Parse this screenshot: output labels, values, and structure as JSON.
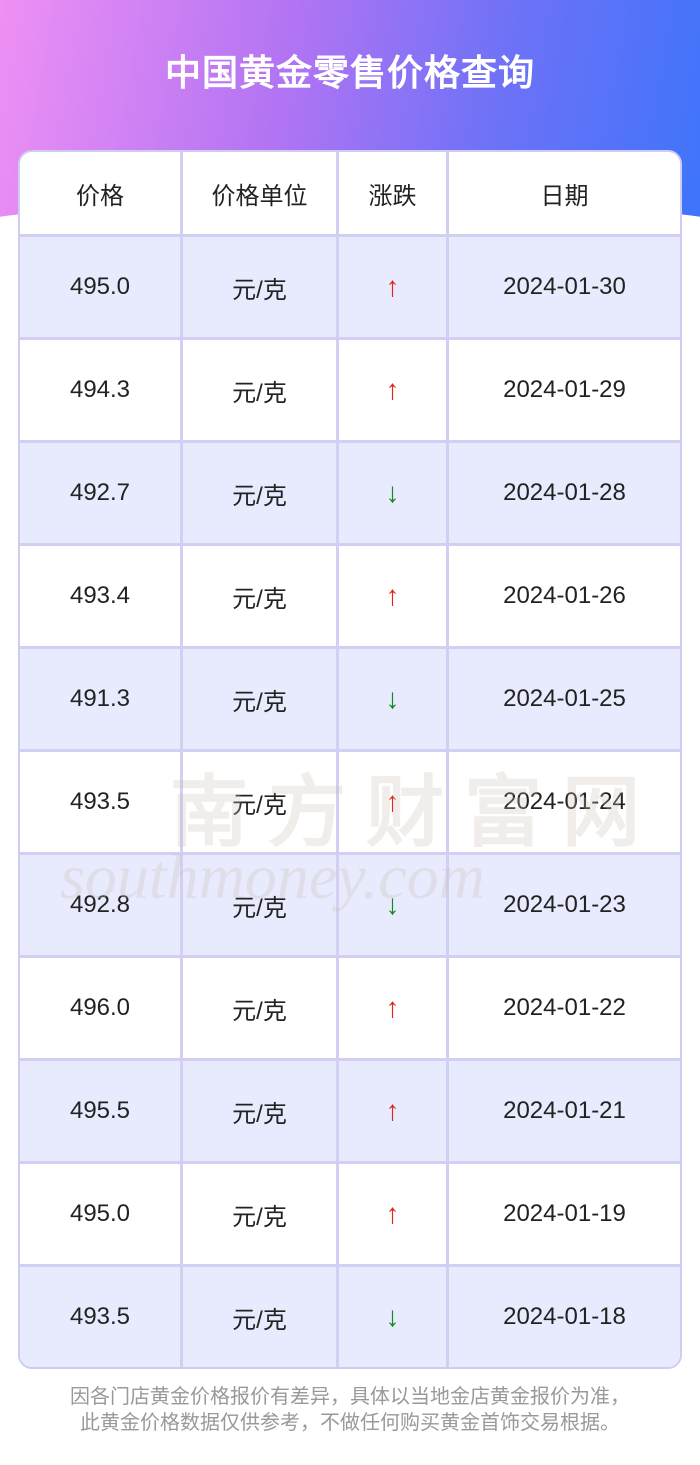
{
  "header": {
    "title": "中国黄金零售价格查询"
  },
  "table": {
    "columns": [
      "价格",
      "价格单位",
      "涨跌",
      "日期"
    ],
    "rows": [
      [
        "495.0",
        "元/克",
        "↑",
        "2024-01-30"
      ],
      [
        "494.3",
        "元/克",
        "↑",
        "2024-01-29"
      ],
      [
        "492.7",
        "元/克",
        "↓",
        "2024-01-28"
      ],
      [
        "493.4",
        "元/克",
        "↑",
        "2024-01-26"
      ],
      [
        "491.3",
        "元/克",
        "↓",
        "2024-01-25"
      ],
      [
        "493.5",
        "元/克",
        "↑",
        "2024-01-24"
      ],
      [
        "492.8",
        "元/克",
        "↓",
        "2024-01-23"
      ],
      [
        "496.0",
        "元/克",
        "↑",
        "2024-01-22"
      ],
      [
        "495.5",
        "元/克",
        "↑",
        "2024-01-21"
      ],
      [
        "495.0",
        "元/克",
        "↑",
        "2024-01-19"
      ],
      [
        "493.5",
        "元/克",
        "↓",
        "2024-01-18"
      ]
    ],
    "arrow_colors": {
      "↑": "#e3241c",
      "↓": "#168a20"
    }
  },
  "watermark": {
    "name": "南方财富网",
    "site": "southmoney.com"
  },
  "footer": {
    "note": "因各门店黄金价格报价有差异，具体以当地金店黄金报价为准，此黄金价格数据仅供参考，不做任何购买黄金首饰交易根据。"
  }
}
